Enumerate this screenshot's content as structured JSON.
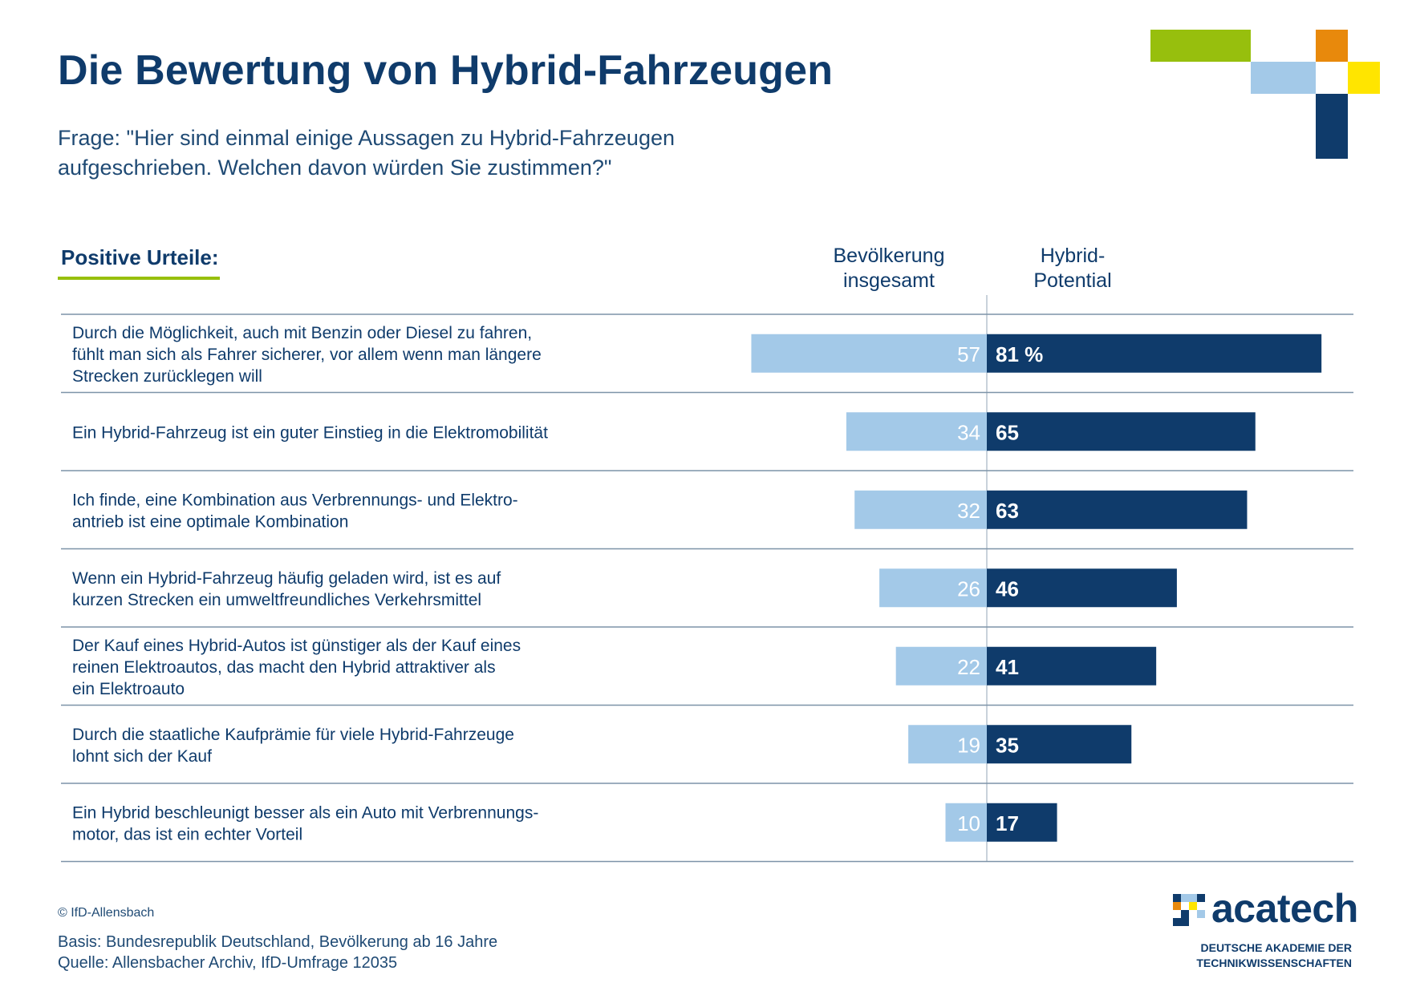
{
  "title": "Die Bewertung von Hybrid-Fahrzeugen",
  "question": "Frage: \"Hier sind einmal einige Aussagen zu Hybrid-Fahrzeugen\naufgeschrieben. Welchen davon würden Sie zustimmen?\"",
  "section_label": "Positive Urteile:",
  "columns": {
    "left": "Bevölkerung\ninsgesamt",
    "right": "Hybrid-\nPotential"
  },
  "colors": {
    "left_bar": "#a3c9e8",
    "right_bar": "#0f3b6b",
    "accent_green": "#97bf0d",
    "accent_orange": "#e8890c",
    "accent_yellow": "#ffe500",
    "text": "#0f3b6b"
  },
  "chart_data": {
    "type": "bar",
    "orientation": "horizontal-diverging",
    "unit": "%",
    "categories": [
      "Durch die Möglichkeit, auch mit Benzin oder Diesel zu fahren,\nfühlt man sich als Fahrer sicherer, vor allem wenn man längere\nStrecken zurücklegen will",
      "Ein Hybrid-Fahrzeug ist ein guter Einstieg in die Elektromobilität",
      "Ich finde, eine Kombination aus Verbrennungs- und Elektro-\nantrieb ist eine optimale Kombination",
      "Wenn ein Hybrid-Fahrzeug häufig geladen wird, ist es auf\nkurzen Strecken ein umweltfreundliches Verkehrsmittel",
      "Der Kauf eines Hybrid-Autos ist günstiger als der Kauf eines\nreinen Elektroautos, das macht den Hybrid attraktiver als\nein Elektroauto",
      "Durch die staatliche Kaufprämie für viele Hybrid-Fahrzeuge\nlohnt sich der Kauf",
      "Ein Hybrid beschleunigt besser als ein Auto mit Verbrennungs-\nmotor, das ist ein echter Vorteil"
    ],
    "series": [
      {
        "name": "Bevölkerung insgesamt",
        "values": [
          57,
          34,
          32,
          26,
          22,
          19,
          10
        ]
      },
      {
        "name": "Hybrid-Potential",
        "values": [
          81,
          65,
          63,
          46,
          41,
          35,
          17
        ]
      }
    ],
    "first_label_suffix": " %"
  },
  "footer": {
    "copyright": "© IfD-Allensbach",
    "basis": "Basis: Bundesrepublik Deutschland, Bevölkerung ab 16 Jahre\nQuelle: Allensbacher Archiv, IfD-Umfrage 12035"
  },
  "logo": {
    "name": "acatech",
    "subtitle": "DEUTSCHE AKADEMIE DER\nTECHNIKWISSENSCHAFTEN"
  }
}
